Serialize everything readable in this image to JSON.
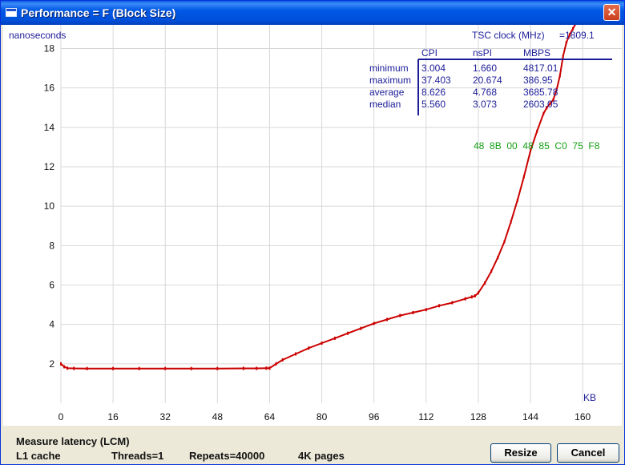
{
  "window": {
    "title": "Performance = F (Block Size)",
    "close_glyph": "✕"
  },
  "chart_data": {
    "type": "line",
    "ylabel": "nanoseconds",
    "xlabel": "KB",
    "xlim": [
      0,
      172
    ],
    "ylim": [
      0,
      19.2
    ],
    "x_ticks": [
      0,
      16,
      32,
      48,
      64,
      80,
      96,
      112,
      128,
      144,
      160
    ],
    "y_ticks": [
      2,
      4,
      6,
      8,
      10,
      12,
      14,
      16,
      18
    ],
    "grid": true,
    "series": [
      {
        "color": "#CC0000",
        "x": [
          0,
          1,
          2,
          4,
          8,
          16,
          24,
          32,
          40,
          48,
          56,
          60,
          63,
          64,
          66,
          68,
          72,
          76,
          80,
          84,
          88,
          92,
          96,
          100,
          104,
          108,
          112,
          116,
          120,
          124,
          126,
          127,
          128,
          130,
          132,
          134,
          136,
          138,
          140,
          142,
          144,
          146,
          148,
          149,
          150,
          151,
          152,
          153,
          154,
          155,
          156,
          157,
          158
        ],
        "y": [
          2.0,
          1.85,
          1.78,
          1.77,
          1.76,
          1.76,
          1.76,
          1.76,
          1.76,
          1.76,
          1.77,
          1.77,
          1.78,
          1.78,
          2.0,
          2.2,
          2.5,
          2.8,
          3.05,
          3.3,
          3.55,
          3.8,
          4.05,
          4.25,
          4.45,
          4.6,
          4.75,
          4.95,
          5.1,
          5.3,
          5.4,
          5.45,
          5.6,
          6.1,
          6.7,
          7.4,
          8.2,
          9.2,
          10.3,
          11.5,
          12.8,
          13.8,
          14.7,
          15.0,
          15.2,
          15.4,
          15.9,
          16.6,
          17.6,
          18.3,
          18.7,
          19.0,
          19.3
        ]
      }
    ]
  },
  "stats": {
    "tsc_label": "TSC clock (MHz)",
    "tsc_value": "=1809.1",
    "columns": [
      "CPI",
      "nsPI",
      "MBPS"
    ],
    "rows": [
      {
        "label": "minimum",
        "cpi": "3.004",
        "nspi": "1.660",
        "mbps": "4817.01"
      },
      {
        "label": "maximum",
        "cpi": "37.403",
        "nspi": "20.674",
        "mbps": "386.95"
      },
      {
        "label": "average",
        "cpi": "8.626",
        "nspi": "4.768",
        "mbps": "3685.78"
      },
      {
        "label": "median",
        "cpi": "5.560",
        "nspi": "3.073",
        "mbps": "2603.05"
      }
    ],
    "opcode": "48  8B  00  48  85  C0  75  F8",
    "label_color": "#1C1C99",
    "opcode_color": "#159E15"
  },
  "status": {
    "measure": "Measure latency (LCM)",
    "cache": "L1 cache",
    "threads": "Threads=1",
    "repeats": "Repeats=40000",
    "pages": "4K pages"
  },
  "buttons": {
    "resize": "Resize",
    "cancel": "Cancel"
  }
}
